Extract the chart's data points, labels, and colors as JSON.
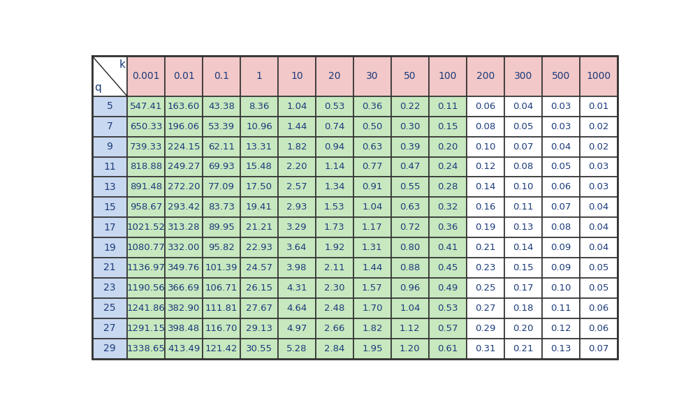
{
  "k_values": [
    "0.001",
    "0.01",
    "0.1",
    "1",
    "10",
    "20",
    "30",
    "50",
    "100",
    "200",
    "300",
    "500",
    "1000"
  ],
  "q_values": [
    5,
    7,
    9,
    11,
    13,
    15,
    17,
    19,
    21,
    23,
    25,
    27,
    29
  ],
  "table_data": [
    [
      547.41,
      163.6,
      43.38,
      8.36,
      1.04,
      0.53,
      0.36,
      0.22,
      0.11,
      0.06,
      0.04,
      0.03,
      0.01
    ],
    [
      650.33,
      196.06,
      53.39,
      10.96,
      1.44,
      0.74,
      0.5,
      0.3,
      0.15,
      0.08,
      0.05,
      0.03,
      0.02
    ],
    [
      739.33,
      224.15,
      62.11,
      13.31,
      1.82,
      0.94,
      0.63,
      0.39,
      0.2,
      0.1,
      0.07,
      0.04,
      0.02
    ],
    [
      818.88,
      249.27,
      69.93,
      15.48,
      2.2,
      1.14,
      0.77,
      0.47,
      0.24,
      0.12,
      0.08,
      0.05,
      0.03
    ],
    [
      891.48,
      272.2,
      77.09,
      17.5,
      2.57,
      1.34,
      0.91,
      0.55,
      0.28,
      0.14,
      0.1,
      0.06,
      0.03
    ],
    [
      958.67,
      293.42,
      83.73,
      19.41,
      2.93,
      1.53,
      1.04,
      0.63,
      0.32,
      0.16,
      0.11,
      0.07,
      0.04
    ],
    [
      1021.52,
      313.28,
      89.95,
      21.21,
      3.29,
      1.73,
      1.17,
      0.72,
      0.36,
      0.19,
      0.13,
      0.08,
      0.04
    ],
    [
      1080.77,
      332.0,
      95.82,
      22.93,
      3.64,
      1.92,
      1.31,
      0.8,
      0.41,
      0.21,
      0.14,
      0.09,
      0.04
    ],
    [
      1136.97,
      349.76,
      101.39,
      24.57,
      3.98,
      2.11,
      1.44,
      0.88,
      0.45,
      0.23,
      0.15,
      0.09,
      0.05
    ],
    [
      1190.56,
      366.69,
      106.71,
      26.15,
      4.31,
      2.3,
      1.57,
      0.96,
      0.49,
      0.25,
      0.17,
      0.1,
      0.05
    ],
    [
      1241.86,
      382.9,
      111.81,
      27.67,
      4.64,
      2.48,
      1.7,
      1.04,
      0.53,
      0.27,
      0.18,
      0.11,
      0.06
    ],
    [
      1291.15,
      398.48,
      116.7,
      29.13,
      4.97,
      2.66,
      1.82,
      1.12,
      0.57,
      0.29,
      0.2,
      0.12,
      0.06
    ],
    [
      1338.65,
      413.49,
      121.42,
      30.55,
      5.28,
      2.84,
      1.95,
      1.2,
      0.61,
      0.31,
      0.21,
      0.13,
      0.07
    ]
  ],
  "header_bg_color": "#F2C8C8",
  "row_header_bg_color": "#C8D8F0",
  "data_bg_color_green": "#C8E8C0",
  "data_bg_color_white": "#FFFFFF",
  "border_color": "#666666",
  "text_color": "#1A3A7A",
  "diagonal_cell_bg": "#FFFFFF",
  "fig_bg_color": "#FFFFFF",
  "outer_border_color": "#333333",
  "green_col_count": 9,
  "font_size_header": 10,
  "font_size_data": 9.5,
  "font_size_qcol": 10,
  "font_family": "DejaVu Sans"
}
